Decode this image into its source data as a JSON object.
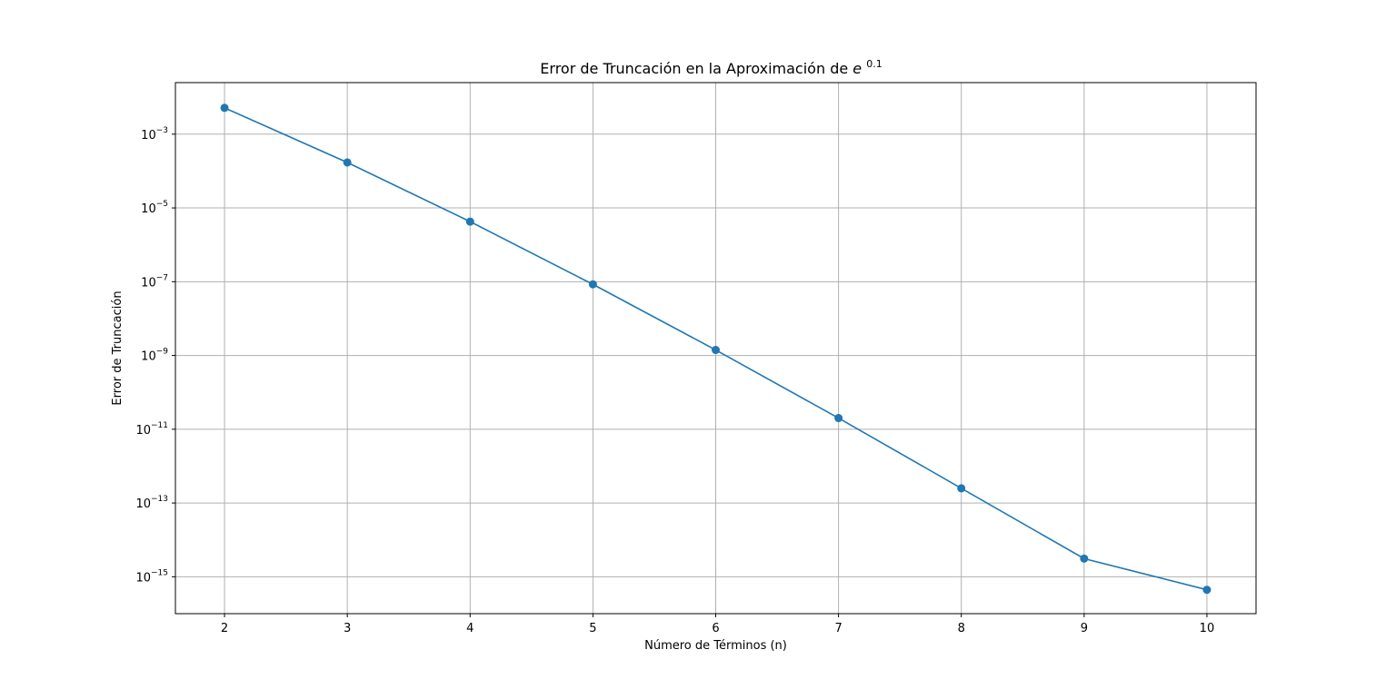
{
  "chart_data": {
    "type": "line",
    "title": "Error de Truncación en la Aproximación de",
    "title_math_base": "e",
    "title_math_exponent": "0.1",
    "xlabel": "Número de Términos (n)",
    "ylabel": "Error de Truncación",
    "x": [
      2,
      3,
      4,
      5,
      6,
      7,
      8,
      9,
      10
    ],
    "series": [
      {
        "values": [
          0.0051709,
          0.00017092,
          4.2514e-06,
          8.4742e-08,
          1.409e-09,
          2.0082e-11,
          2.5046e-13,
          3.1086e-15,
          4.4409e-16
        ],
        "color": "#1f77b4",
        "marker": "circle"
      }
    ],
    "xlim": [
      1.6,
      10.4
    ],
    "ylim": [
      1e-16,
      0.025
    ],
    "yscale": "log",
    "x_ticks": [
      2,
      3,
      4,
      5,
      6,
      7,
      8,
      9,
      10
    ],
    "y_ticks": [
      {
        "value": 0.001,
        "base": "10",
        "exp": "−3"
      },
      {
        "value": 1e-05,
        "base": "10",
        "exp": "−5"
      },
      {
        "value": 1e-07,
        "base": "10",
        "exp": "−7"
      },
      {
        "value": 1e-09,
        "base": "10",
        "exp": "−9"
      },
      {
        "value": 1e-11,
        "base": "10",
        "exp": "−11"
      },
      {
        "value": 1e-13,
        "base": "10",
        "exp": "−13"
      },
      {
        "value": 1e-15,
        "base": "10",
        "exp": "−15"
      }
    ],
    "grid": true,
    "grid_color": "#b0b0b0"
  }
}
